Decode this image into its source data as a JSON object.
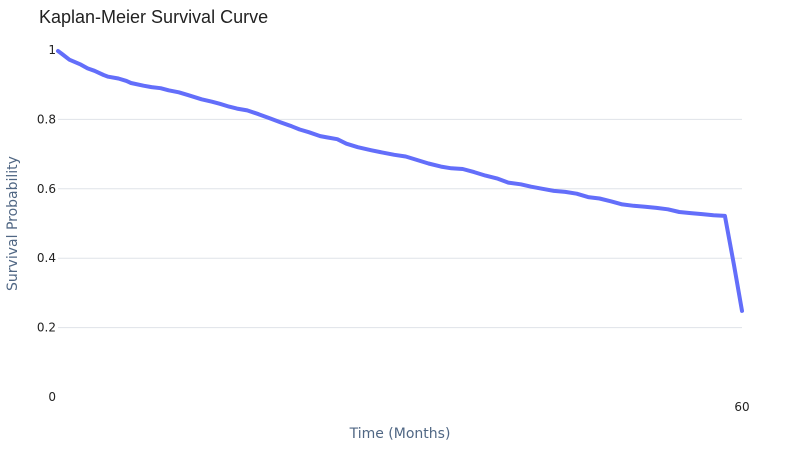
{
  "chart_data": {
    "type": "line",
    "title": "Kaplan-Meier Survival Curve",
    "xlabel": "Time (Months)",
    "ylabel": "Survival Probability",
    "xlim": [
      0,
      60
    ],
    "ylim": [
      0,
      1
    ],
    "x_ticks": [
      {
        "value": 60,
        "label": "60"
      }
    ],
    "y_ticks": [
      {
        "value": 0,
        "label": "0"
      },
      {
        "value": 0.2,
        "label": "0.2"
      },
      {
        "value": 0.4,
        "label": "0.4"
      },
      {
        "value": 0.6,
        "label": "0.6"
      },
      {
        "value": 0.8,
        "label": "0.8"
      },
      {
        "value": 1,
        "label": "1"
      }
    ],
    "grid": true,
    "series": [
      {
        "color": "#636efa",
        "x": [
          0,
          0.3,
          1,
          2,
          2.6,
          3.2,
          4,
          4.4,
          5.3,
          6,
          6.4,
          7.5,
          8.2,
          9,
          9.7,
          10.6,
          11.4,
          12.6,
          13.5,
          14.2,
          15,
          15.7,
          16.6,
          17.6,
          18.6,
          19.5,
          20.5,
          21.2,
          22,
          23,
          23.6,
          24.5,
          25.3,
          26.3,
          27.5,
          28.7,
          29.5,
          30.5,
          31.5,
          32.5,
          33.6,
          34.5,
          35.5,
          36.5,
          37.5,
          38.5,
          39.5,
          40.6,
          41.5,
          42.5,
          43.5,
          44.5,
          45.5,
          46.5,
          47.5,
          48.5,
          49.5,
          50.5,
          51.5,
          52.5,
          53.5,
          54.5,
          55.5,
          56.5,
          57.5,
          58.5,
          59.3,
          60
        ],
        "y": [
          0.997,
          0.99,
          0.972,
          0.958,
          0.947,
          0.94,
          0.928,
          0.923,
          0.918,
          0.911,
          0.905,
          0.897,
          0.893,
          0.89,
          0.884,
          0.878,
          0.87,
          0.858,
          0.851,
          0.845,
          0.837,
          0.831,
          0.826,
          0.815,
          0.803,
          0.792,
          0.78,
          0.771,
          0.763,
          0.752,
          0.748,
          0.743,
          0.73,
          0.72,
          0.711,
          0.703,
          0.698,
          0.693,
          0.683,
          0.673,
          0.664,
          0.659,
          0.657,
          0.648,
          0.638,
          0.63,
          0.618,
          0.613,
          0.606,
          0.6,
          0.594,
          0.591,
          0.586,
          0.576,
          0.572,
          0.564,
          0.555,
          0.551,
          0.548,
          0.545,
          0.541,
          0.533,
          0.53,
          0.527,
          0.524,
          0.522,
          0.38,
          0.248
        ]
      }
    ]
  }
}
